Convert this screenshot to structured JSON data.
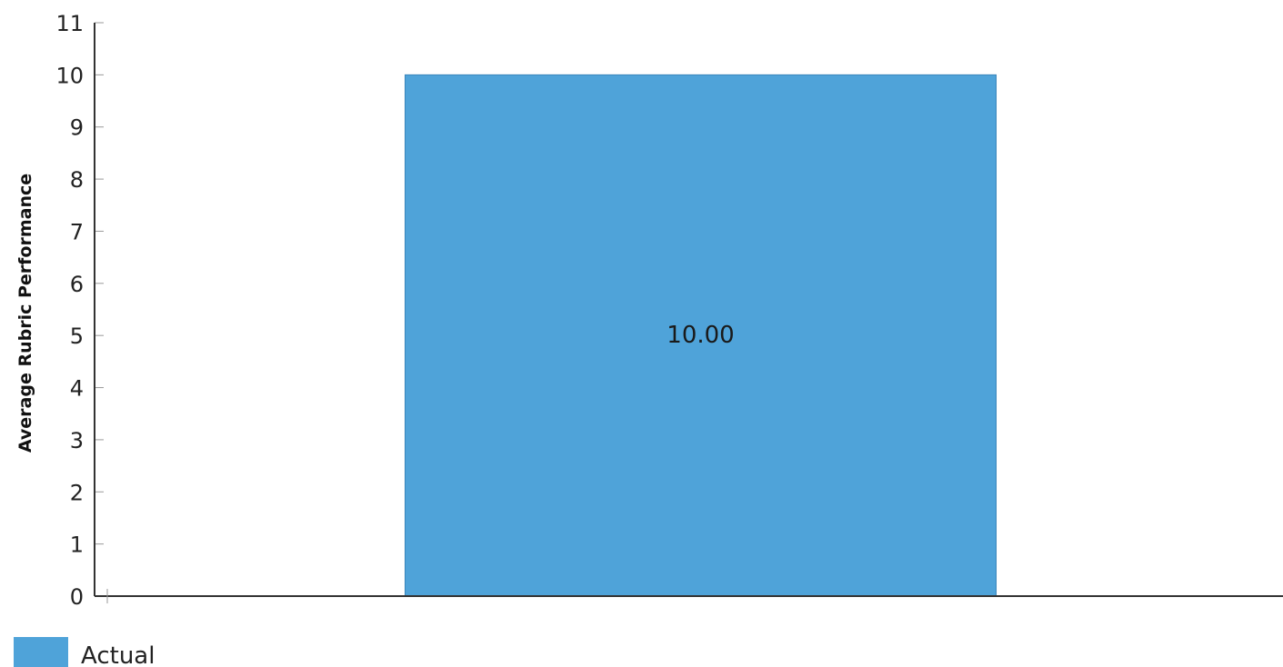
{
  "chart_data": {
    "type": "bar",
    "categories": [
      ""
    ],
    "series": [
      {
        "name": "Actual",
        "values": [
          10
        ],
        "color": "#4fa3d9",
        "data_labels": [
          "10.00"
        ]
      }
    ],
    "title": "",
    "xlabel": "",
    "ylabel": "Average Rubric Performance",
    "ylim": [
      0,
      11
    ],
    "yticks": [
      "0",
      "1",
      "2",
      "3",
      "4",
      "5",
      "6",
      "7",
      "8",
      "9",
      "10",
      "11"
    ],
    "grid": false,
    "legend": {
      "position": "bottom-left",
      "entries": [
        "Actual"
      ]
    }
  }
}
